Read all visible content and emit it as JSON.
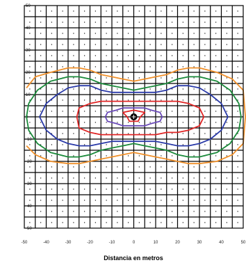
{
  "chart_data": {
    "type": "line",
    "title": "",
    "xlabel": "Distancia en metros",
    "ylabel": "",
    "xlim": [
      -50,
      50
    ],
    "ylim": [
      -50,
      50
    ],
    "x_ticks": [
      -50,
      -40,
      -30,
      -20,
      -10,
      0,
      10,
      20,
      30,
      40,
      50
    ],
    "y_ticks": [
      50,
      40,
      30,
      20,
      10,
      0,
      -10,
      -20,
      -30,
      -40,
      -50
    ],
    "x_tick_labels": [
      "-50",
      "-40",
      "-30",
      "-20",
      "-10",
      "0",
      "10",
      "20",
      "30",
      "40",
      "50"
    ],
    "y_tick_labels": [
      "50",
      "40",
      "30",
      "20",
      "10",
      "0",
      "-10",
      "-20",
      "-30",
      "-40",
      "-50"
    ],
    "grid": true,
    "legend": "none",
    "source_marker": {
      "x": 0,
      "y": 0
    },
    "series": [
      {
        "color": "#f0902a",
        "points": [
          [
            -49,
            13
          ],
          [
            -45,
            18
          ],
          [
            -38,
            20
          ],
          [
            -30,
            22
          ],
          [
            -25,
            22
          ],
          [
            -20,
            21
          ],
          [
            -15,
            19
          ],
          [
            -10,
            18
          ],
          [
            -5,
            17
          ],
          [
            0,
            16
          ],
          [
            5,
            17
          ],
          [
            10,
            18
          ],
          [
            15,
            19
          ],
          [
            20,
            21
          ],
          [
            25,
            22
          ],
          [
            30,
            22
          ],
          [
            38,
            20
          ],
          [
            45,
            17
          ],
          [
            50,
            12
          ],
          [
            51,
            0
          ],
          [
            50,
            -12
          ],
          [
            45,
            -17
          ],
          [
            38,
            -20
          ],
          [
            30,
            -21
          ],
          [
            25,
            -21
          ],
          [
            20,
            -20
          ],
          [
            15,
            -19
          ],
          [
            10,
            -18
          ],
          [
            5,
            -17
          ],
          [
            0,
            -16
          ],
          [
            -5,
            -17
          ],
          [
            -10,
            -18
          ],
          [
            -15,
            -19
          ],
          [
            -20,
            -20
          ],
          [
            -25,
            -21
          ],
          [
            -30,
            -21
          ],
          [
            -38,
            -20
          ],
          [
            -45,
            -17
          ],
          [
            -49,
            -13
          ]
        ]
      },
      {
        "color": "#1a8a3a",
        "points": [
          [
            -48,
            6
          ],
          [
            -44,
            12
          ],
          [
            -38,
            16
          ],
          [
            -30,
            18
          ],
          [
            -25,
            18
          ],
          [
            -20,
            17
          ],
          [
            -15,
            15
          ],
          [
            -10,
            14
          ],
          [
            -5,
            13
          ],
          [
            0,
            12
          ],
          [
            5,
            13
          ],
          [
            10,
            14
          ],
          [
            15,
            15
          ],
          [
            20,
            17
          ],
          [
            25,
            18
          ],
          [
            30,
            18
          ],
          [
            38,
            16
          ],
          [
            44,
            12
          ],
          [
            48,
            6
          ],
          [
            49,
            0
          ],
          [
            48,
            -6
          ],
          [
            44,
            -12
          ],
          [
            38,
            -16
          ],
          [
            30,
            -18
          ],
          [
            25,
            -18
          ],
          [
            20,
            -17
          ],
          [
            15,
            -15
          ],
          [
            10,
            -14
          ],
          [
            5,
            -13
          ],
          [
            0,
            -12
          ],
          [
            -5,
            -13
          ],
          [
            -10,
            -14
          ],
          [
            -15,
            -15
          ],
          [
            -20,
            -17
          ],
          [
            -25,
            -18
          ],
          [
            -30,
            -18
          ],
          [
            -38,
            -16
          ],
          [
            -44,
            -12
          ],
          [
            -48,
            -6
          ],
          [
            -49,
            0
          ],
          [
            -48,
            6
          ]
        ]
      },
      {
        "color": "#2a3aa8",
        "points": [
          [
            -43,
            0
          ],
          [
            -40,
            6
          ],
          [
            -35,
            10
          ],
          [
            -30,
            13
          ],
          [
            -25,
            14
          ],
          [
            -20,
            14
          ],
          [
            -15,
            12
          ],
          [
            -10,
            11
          ],
          [
            -5,
            11
          ],
          [
            0,
            11
          ],
          [
            5,
            11
          ],
          [
            10,
            11
          ],
          [
            15,
            12
          ],
          [
            20,
            14
          ],
          [
            25,
            14
          ],
          [
            30,
            13
          ],
          [
            35,
            10
          ],
          [
            40,
            6
          ],
          [
            43,
            0
          ],
          [
            40,
            -6
          ],
          [
            35,
            -10
          ],
          [
            30,
            -12
          ],
          [
            25,
            -13
          ],
          [
            20,
            -13
          ],
          [
            15,
            -12
          ],
          [
            10,
            -11
          ],
          [
            5,
            -11
          ],
          [
            0,
            -11
          ],
          [
            -5,
            -11
          ],
          [
            -10,
            -11
          ],
          [
            -15,
            -12
          ],
          [
            -20,
            -13
          ],
          [
            -25,
            -13
          ],
          [
            -30,
            -12
          ],
          [
            -35,
            -10
          ],
          [
            -40,
            -6
          ],
          [
            -43,
            0
          ]
        ]
      },
      {
        "color": "#e02525",
        "points": [
          [
            -26,
            0
          ],
          [
            -25,
            4
          ],
          [
            -20,
            6
          ],
          [
            -15,
            7
          ],
          [
            -10,
            7
          ],
          [
            -5,
            7
          ],
          [
            0,
            7
          ],
          [
            5,
            7
          ],
          [
            10,
            7
          ],
          [
            15,
            7
          ],
          [
            20,
            7
          ],
          [
            25,
            6
          ],
          [
            30,
            4
          ],
          [
            32,
            0
          ],
          [
            30,
            -4
          ],
          [
            25,
            -6
          ],
          [
            20,
            -7
          ],
          [
            15,
            -7
          ],
          [
            10,
            -8
          ],
          [
            5,
            -8
          ],
          [
            0,
            -8
          ],
          [
            -5,
            -8
          ],
          [
            -10,
            -8
          ],
          [
            -15,
            -8
          ],
          [
            -20,
            -7
          ],
          [
            -25,
            -5
          ],
          [
            -26,
            0
          ]
        ]
      },
      {
        "color": "#6a4ab8",
        "points": [
          [
            -13,
            0
          ],
          [
            -12,
            2
          ],
          [
            -8,
            3
          ],
          [
            -5,
            4
          ],
          [
            0,
            4
          ],
          [
            5,
            4
          ],
          [
            8,
            3
          ],
          [
            12,
            2
          ],
          [
            13,
            0
          ],
          [
            12,
            -2
          ],
          [
            8,
            -3
          ],
          [
            5,
            -4
          ],
          [
            0,
            -4
          ],
          [
            -5,
            -4
          ],
          [
            -8,
            -3
          ],
          [
            -12,
            -2
          ],
          [
            -13,
            0
          ]
        ]
      },
      {
        "color": "#e02525",
        "points": [
          [
            -5,
            2
          ],
          [
            0,
            3
          ],
          [
            5,
            2
          ],
          [
            3,
            0
          ],
          [
            2,
            -2
          ],
          [
            0,
            -2
          ],
          [
            -2,
            -2
          ],
          [
            -3,
            0
          ],
          [
            -5,
            2
          ]
        ]
      }
    ]
  }
}
